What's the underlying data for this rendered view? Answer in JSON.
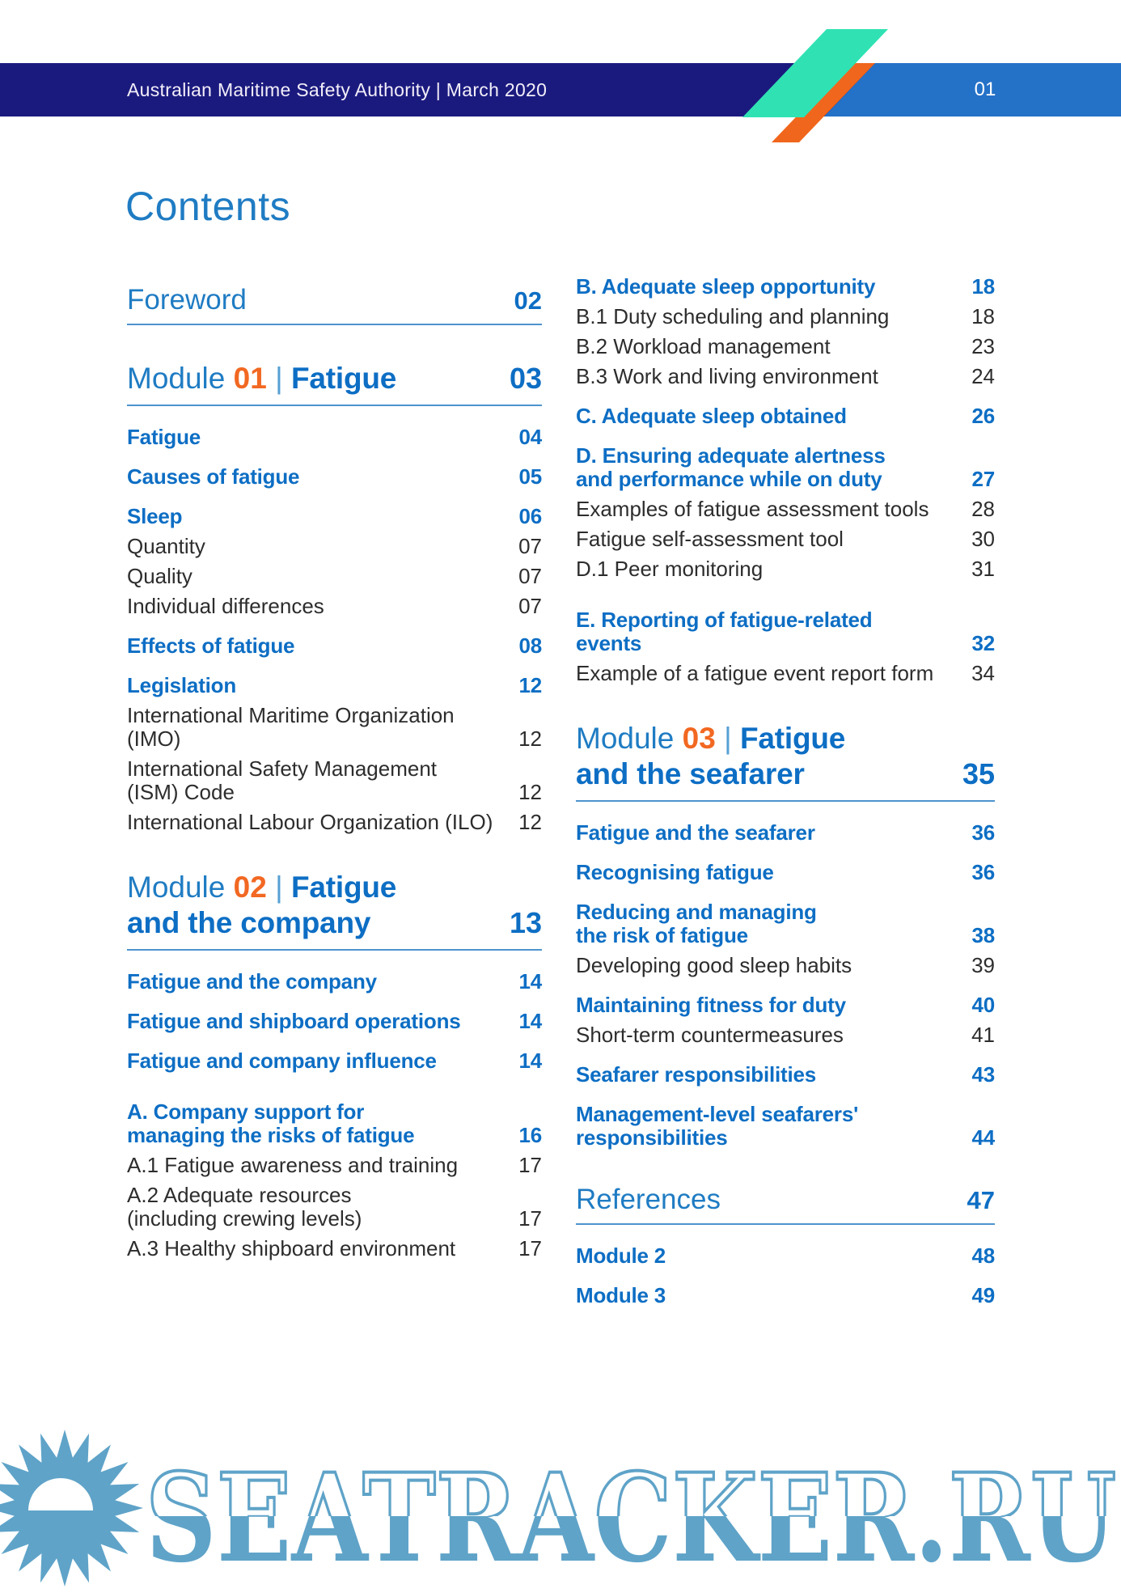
{
  "header": {
    "title": "Australian Maritime Safety Authority | March 2020",
    "page_number": "01"
  },
  "page_title": "Contents",
  "colors": {
    "navy_bar": "#1A1A7E",
    "light_blue_bar": "#2471C8",
    "teal_stripe": "#30E2B3",
    "orange_stripe": "#F0661C",
    "heading_blue": "#1F7CC3",
    "bold_entry_blue": "#0D6EC4",
    "module_number_orange": "#F26822",
    "body_text": "#2D2D2D",
    "rule_blue": "#4D94CE",
    "watermark_blue": "#5FA3C8"
  },
  "toc": {
    "left": [
      {
        "type": "section",
        "label": "Foreword",
        "page": "02"
      },
      {
        "type": "module",
        "prefix": "Module",
        "number": "01",
        "separator": "|",
        "title": "Fatigue",
        "page": "03"
      },
      {
        "type": "bold",
        "label": "Fatigue",
        "page": "04"
      },
      {
        "type": "bold",
        "label": "Causes of fatigue",
        "page": "05"
      },
      {
        "type": "bold",
        "label": "Sleep",
        "page": "06"
      },
      {
        "type": "sub",
        "label": "Quantity",
        "page": "07"
      },
      {
        "type": "sub",
        "label": "Quality",
        "page": "07"
      },
      {
        "type": "sub",
        "label": "Individual differences",
        "page": "07"
      },
      {
        "type": "bold",
        "label": "Effects of fatigue",
        "page": "08"
      },
      {
        "type": "bold",
        "label": "Legislation",
        "page": "12"
      },
      {
        "type": "sub",
        "label": "International Maritime Organization (IMO)",
        "page": "12"
      },
      {
        "type": "sub",
        "label": "International Safety Management\n(ISM) Code",
        "page": "12"
      },
      {
        "type": "sub",
        "label": "International Labour Organization (ILO)",
        "page": "12"
      },
      {
        "type": "module",
        "prefix": "Module",
        "number": "02",
        "separator": "|",
        "title": "Fatigue\nand the company",
        "page": "13"
      },
      {
        "type": "bold",
        "label": "Fatigue and the company",
        "page": "14"
      },
      {
        "type": "bold",
        "label": "Fatigue and shipboard operations",
        "page": "14"
      },
      {
        "type": "bold",
        "label": "Fatigue and company influence",
        "page": "14"
      },
      {
        "type": "bold",
        "group_start": true,
        "label": "A. Company support for\nmanaging the risks of fatigue",
        "page": "16"
      },
      {
        "type": "sub",
        "label": "A.1 Fatigue awareness and training",
        "page": "17"
      },
      {
        "type": "sub",
        "label": "A.2 Adequate resources\n(including crewing levels)",
        "page": "17"
      },
      {
        "type": "sub",
        "label": "A.3 Healthy shipboard environment",
        "page": "17"
      }
    ],
    "right": [
      {
        "type": "bold",
        "label": "B. Adequate sleep opportunity",
        "page": "18"
      },
      {
        "type": "sub",
        "label": "B.1 Duty scheduling and planning",
        "page": "18"
      },
      {
        "type": "sub",
        "label": "B.2 Workload management",
        "page": "23"
      },
      {
        "type": "sub",
        "label": "B.3 Work and living environment",
        "page": "24"
      },
      {
        "type": "bold",
        "label": "C. Adequate sleep obtained",
        "page": "26"
      },
      {
        "type": "bold",
        "label": "D. Ensuring adequate alertness\nand performance while on duty",
        "page": "27"
      },
      {
        "type": "sub",
        "label": "Examples of fatigue assessment tools",
        "page": "28"
      },
      {
        "type": "sub",
        "label": "Fatigue self-assessment tool",
        "page": "30"
      },
      {
        "type": "sub",
        "label": "D.1 Peer monitoring",
        "page": "31"
      },
      {
        "type": "bold",
        "group_start": true,
        "label": "E. Reporting of fatigue-related\nevents",
        "page": "32"
      },
      {
        "type": "sub",
        "label": "Example of a fatigue event report form",
        "page": "34"
      },
      {
        "type": "module",
        "prefix": "Module",
        "number": "03",
        "separator": "|",
        "title": "Fatigue\nand the seafarer",
        "page": "35"
      },
      {
        "type": "bold",
        "label": "Fatigue and the seafarer",
        "page": "36"
      },
      {
        "type": "bold",
        "label": "Recognising fatigue",
        "page": "36"
      },
      {
        "type": "bold",
        "label": "Reducing and managing\nthe risk of fatigue",
        "page": "38"
      },
      {
        "type": "sub",
        "label": "Developing good sleep habits",
        "page": "39"
      },
      {
        "type": "bold",
        "label": "Maintaining fitness for duty",
        "page": "40"
      },
      {
        "type": "sub",
        "label": "Short-term countermeasures",
        "page": "41"
      },
      {
        "type": "bold",
        "label": "Seafarer responsibilities",
        "page": "43"
      },
      {
        "type": "bold",
        "label": "Management-level seafarers'\nresponsibilities",
        "page": "44"
      },
      {
        "type": "section",
        "label": "References",
        "page": "47"
      },
      {
        "type": "bold",
        "label": "Module 2",
        "page": "48"
      },
      {
        "type": "bold",
        "label": "Module 3",
        "page": "49"
      }
    ]
  },
  "watermark": {
    "text": "SEATRACKER.RU",
    "icon": "sun-icon"
  }
}
